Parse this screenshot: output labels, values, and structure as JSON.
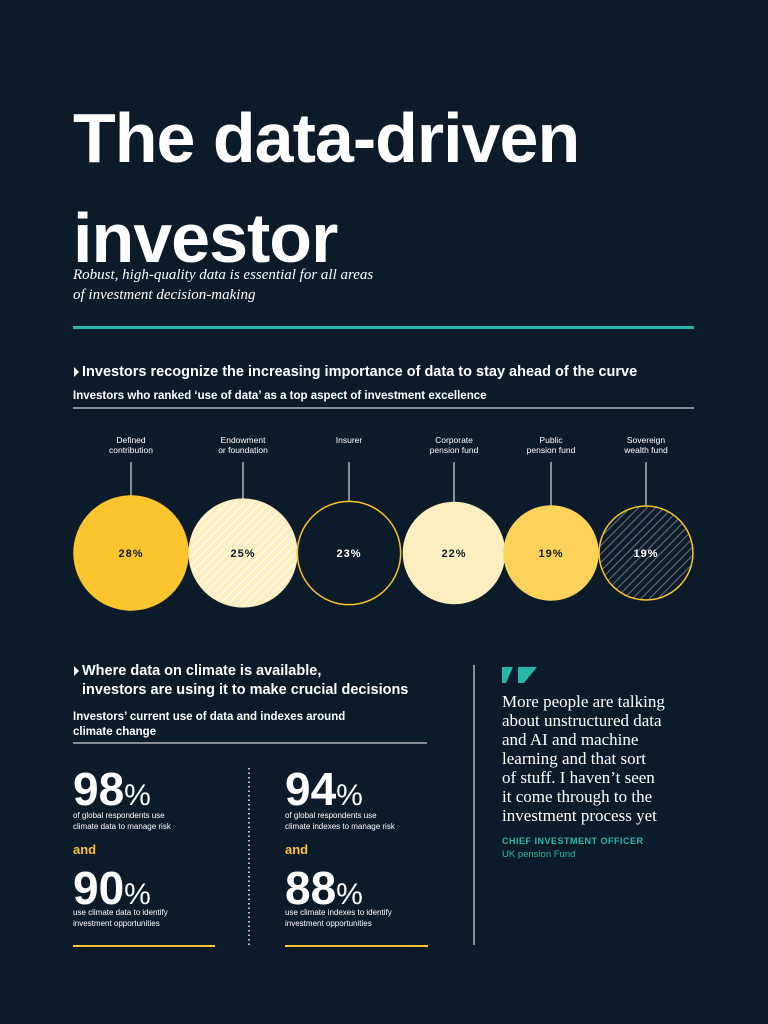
{
  "header": {
    "title": "The data-driven\ninvestor",
    "subtitle": "Robust, high-quality data is essential for all areas\nof investment decision-making"
  },
  "section1": {
    "heading": "Investors recognize the increasing importance of data to stay ahead of the curve",
    "subheading": "Investors who ranked ‘use of data’ as a top aspect of investment excellence"
  },
  "chart_data": {
    "type": "bubble",
    "categories": [
      "Defined\ncontribution",
      "Endowment\nor foundation",
      "Insurer",
      "Corporate\npension fund",
      "Public\npension fund",
      "Sovereign\nwealth fund"
    ],
    "values": [
      28,
      25,
      23,
      22,
      19,
      19
    ],
    "value_labels": [
      "28%",
      "25%",
      "23%",
      "22%",
      "19%",
      "19%"
    ],
    "colors": [
      "#fcc42d",
      "#fdeebf",
      "#0c1b2a",
      "#fdeebf",
      "#fdd25a",
      "#0c1b2a"
    ],
    "fill_styles": [
      "solid",
      "hatch",
      "outline",
      "solid",
      "solid",
      "hatch"
    ]
  },
  "section2": {
    "heading": "Where data on climate is available,\ninvestors are using it to make crucial decisions",
    "subheading": "Investors’ current use of data and indexes around\nclimate change",
    "stats": [
      {
        "value": "98",
        "unit": "%",
        "text": "of global respondents use\nclimate data to manage risk"
      },
      {
        "value": "90",
        "unit": "%",
        "text": "use climate data to identify\ninvestment opportunities"
      },
      {
        "value": "94",
        "unit": "%",
        "text": "of global respondents use\nclimate indexes to manage risk"
      },
      {
        "value": "88",
        "unit": "%",
        "text": "use climate indexes to identify\ninvestment opportunities"
      }
    ],
    "connector": "and"
  },
  "quote": {
    "text": "More people are talking\nabout unstructured data\nand AI and machine\nlearning and that sort\nof stuff. I haven’t seen\nit come through to the\ninvestment process yet",
    "role": "CHIEF INVESTMENT OFFICER",
    "organization": "UK pension Fund"
  }
}
